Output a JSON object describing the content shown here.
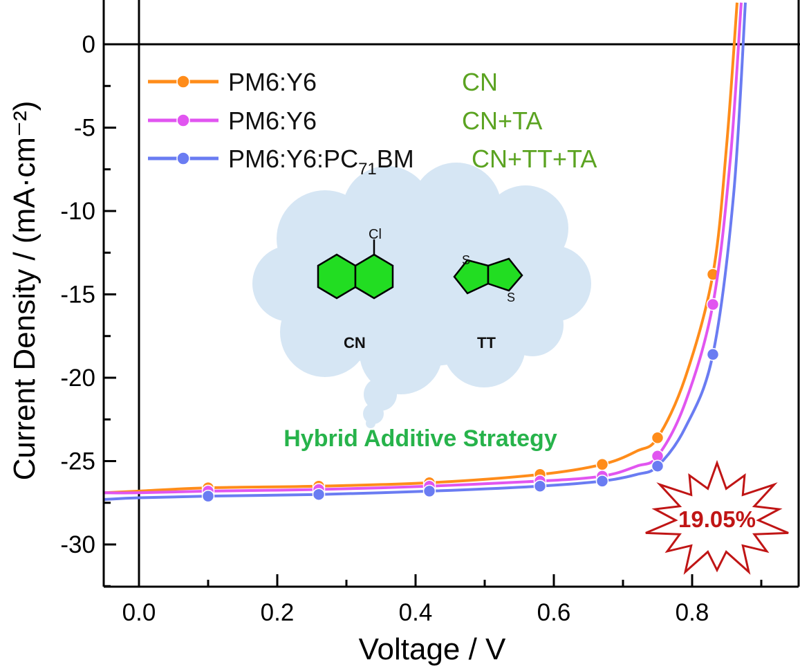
{
  "chart_data": {
    "type": "line",
    "title": "",
    "xlabel": "Voltage / V",
    "ylabel": "Current Density / (mA·cm⁻²)",
    "xlim": [
      -0.05,
      0.95
    ],
    "ylim": [
      -32.5,
      2.5
    ],
    "x_ticks": [
      0.0,
      0.2,
      0.4,
      0.6,
      0.8
    ],
    "x_tick_labels": [
      "0.0",
      "0.2",
      "0.4",
      "0.6",
      "0.8"
    ],
    "y_ticks": [
      0,
      -5,
      -10,
      -15,
      -20,
      -25,
      -30
    ],
    "y_tick_labels": [
      "0",
      "-5",
      "-10",
      "-15",
      "-20",
      "-25",
      "-30"
    ],
    "grid": false,
    "legend_position": "top-left",
    "marker_x": [
      0.1,
      0.26,
      0.42,
      0.58,
      0.67,
      0.75,
      0.83
    ],
    "series": [
      {
        "name": "PM6:Y6",
        "condition": "CN",
        "color": "#ff8c1a",
        "x": [
          -0.05,
          0.0,
          0.1,
          0.26,
          0.42,
          0.58,
          0.67,
          0.72,
          0.75,
          0.79,
          0.83,
          0.85,
          0.865
        ],
        "y": [
          -26.9,
          -26.8,
          -26.6,
          -26.5,
          -26.3,
          -25.8,
          -25.2,
          -24.4,
          -23.6,
          -20.0,
          -13.8,
          -6.0,
          2.5
        ]
      },
      {
        "name": "PM6:Y6",
        "condition": "CN+TA",
        "color": "#e155f0",
        "x": [
          -0.05,
          0.0,
          0.1,
          0.26,
          0.42,
          0.58,
          0.67,
          0.72,
          0.75,
          0.79,
          0.83,
          0.855,
          0.871
        ],
        "y": [
          -26.9,
          -26.9,
          -26.8,
          -26.7,
          -26.5,
          -26.2,
          -25.9,
          -25.3,
          -24.7,
          -21.5,
          -15.6,
          -7.0,
          2.5
        ]
      },
      {
        "name": "PM6:Y6:PC71BM",
        "condition": "CN+TT+TA",
        "color": "#6a7cf2",
        "x": [
          -0.05,
          0.0,
          0.1,
          0.26,
          0.42,
          0.58,
          0.67,
          0.72,
          0.75,
          0.79,
          0.83,
          0.86,
          0.877
        ],
        "y": [
          -27.3,
          -27.2,
          -27.1,
          -27.0,
          -26.8,
          -26.5,
          -26.2,
          -25.8,
          -25.3,
          -23.0,
          -18.6,
          -9.0,
          2.5
        ]
      }
    ],
    "legend": {
      "entries": [
        {
          "base": "PM6:Y6",
          "sub": "",
          "tail": "",
          "condition": "CN"
        },
        {
          "base": "PM6:Y6",
          "sub": "",
          "tail": "",
          "condition": "CN+TA"
        },
        {
          "base": "PM6:Y6:PC",
          "sub": "71",
          "tail": "BM",
          "condition": "CN+TT+TA"
        }
      ],
      "condition_color": "#5ba321"
    },
    "annotations": {
      "molecule_1": "CN",
      "molecule_1_atom": "Cl",
      "molecule_2": "TT",
      "molecule_2_atom": "S",
      "strategy": "Hybrid Additive Strategy",
      "strategy_color": "#27b34b",
      "efficiency": "19.05%",
      "efficiency_color": "#c01515",
      "cloud_color": "#d6e6f4",
      "molecule_color": "#22dd22"
    }
  }
}
